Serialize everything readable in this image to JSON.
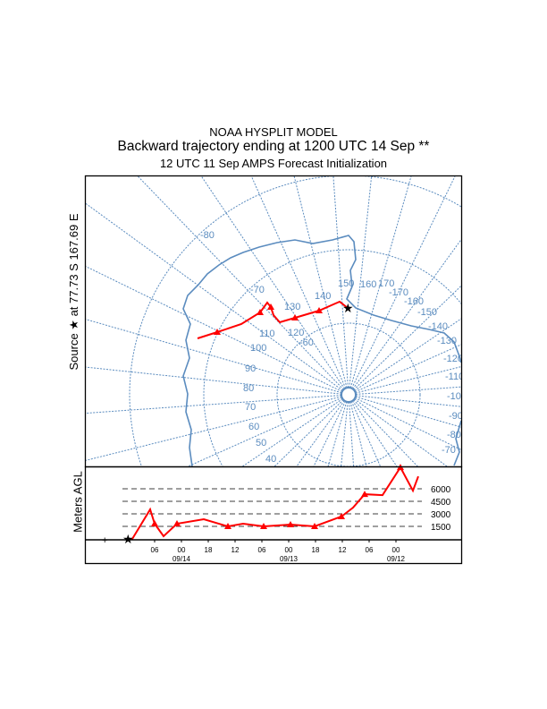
{
  "title": {
    "line1": "NOAA HYSPLIT MODEL",
    "line2": "Backward trajectory ending at 1200 UTC 14 Sep **",
    "line3": "12 UTC 11 Sep    AMPS  Forecast Initialization"
  },
  "source_label": "Source ★ at   77.73 S  167.69 E",
  "colors": {
    "trajectory": "#ff0000",
    "map": "#5b8cbf",
    "frame": "#000000"
  },
  "chart_data": [
    {
      "type": "line",
      "name": "map",
      "projection": "polar (south pole)",
      "latitude_labels": [
        "-60",
        "-70",
        "-80"
      ],
      "longitude_labels": [
        "120",
        "130",
        "140",
        "150",
        "160",
        "170",
        "-170",
        "-160",
        "-150",
        "-140",
        "-130",
        "-120",
        "-110",
        "-100",
        "-90",
        "-80",
        "-70",
        "110",
        "100",
        "90",
        "80",
        "70",
        "60",
        "50",
        "40"
      ],
      "source": {
        "lat": -77.73,
        "lon": 167.69
      },
      "trajectory_markers": "triangle every 6 h"
    },
    {
      "type": "line",
      "ylabel": "Meters AGL",
      "y_ticks": [
        "1500",
        "3000",
        "4500",
        "6000"
      ],
      "y_tick_values": [
        1500,
        3000,
        4500,
        6000
      ],
      "x_tick_labels": [
        "06",
        "00",
        "18",
        "12",
        "06",
        "00",
        "18",
        "12",
        "06",
        "00"
      ],
      "x_tick_hours_back": [
        6,
        12,
        18,
        24,
        30,
        36,
        42,
        48,
        54,
        60
      ],
      "date_labels": [
        {
          "label": "09/14",
          "hours_back": 12
        },
        {
          "label": "09/13",
          "hours_back": 36
        },
        {
          "label": "09/12",
          "hours_back": 60
        }
      ],
      "series": [
        {
          "hours_back": [
            0,
            1,
            5,
            6,
            8,
            11,
            17,
            22.4,
            25.8,
            30.4,
            36.4,
            41.8,
            47.8,
            50.4,
            53,
            57,
            61,
            63.8,
            65
          ],
          "height_m": [
            0,
            0,
            3530,
            1820,
            320,
            1820,
            2350,
            1500,
            1820,
            1500,
            1710,
            1500,
            2680,
            3750,
            5350,
            5240,
            8560,
            5780,
            7490
          ]
        }
      ]
    }
  ]
}
